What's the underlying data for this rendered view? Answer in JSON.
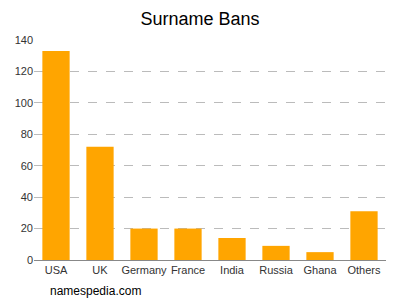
{
  "chart_data": {
    "type": "bar",
    "title": "Surname Bans",
    "categories": [
      "USA",
      "UK",
      "Germany",
      "France",
      "India",
      "Russia",
      "Ghana",
      "Others"
    ],
    "values": [
      133,
      72,
      20,
      20,
      14,
      9,
      5,
      31
    ],
    "color": "#ffa500",
    "ylim": [
      0,
      140
    ],
    "yticks": [
      0,
      20,
      40,
      60,
      80,
      100,
      120,
      140
    ],
    "grid": true,
    "annotations": [
      "namespedia.com"
    ]
  }
}
